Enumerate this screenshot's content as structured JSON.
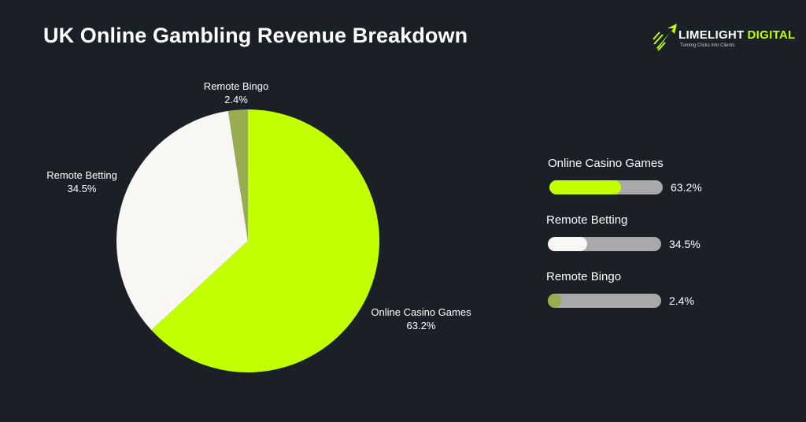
{
  "title": "UK Online Gambling Revenue Breakdown",
  "logo": {
    "name_part1": "LIMELIGHT",
    "name_part2": "DIGITAL",
    "tagline": "Turning Clicks Into Clients",
    "icon": "rocket-arrow-icon",
    "accent_color": "#c2ff00"
  },
  "colors": {
    "background": "#1b1f26",
    "casino": "#c2ff00",
    "betting": "#f8f7f4",
    "bingo": "#98ad4f",
    "track": "#a8a9ab"
  },
  "chart_data": {
    "type": "pie",
    "title": "UK Online Gambling Revenue Breakdown",
    "slices": [
      {
        "label": "Online Casino Games",
        "value": 63.2,
        "display": "63.2%",
        "color": "#c2ff00"
      },
      {
        "label": "Remote Betting",
        "value": 34.5,
        "display": "34.5%",
        "color": "#f8f7f4"
      },
      {
        "label": "Remote Bingo",
        "value": 2.4,
        "display": "2.4%",
        "color": "#98ad4f"
      }
    ],
    "start": "12 o'clock",
    "direction": "clockwise",
    "labels": "outside",
    "legend": "right"
  }
}
